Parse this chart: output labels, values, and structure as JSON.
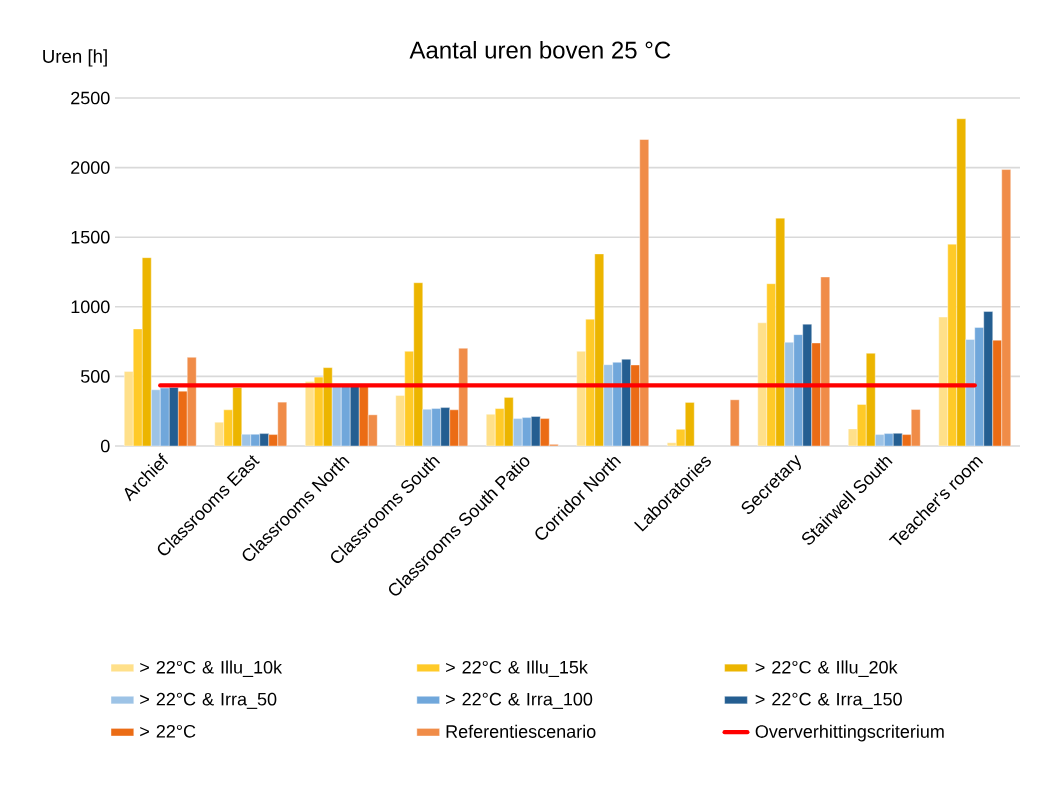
{
  "chart_data": {
    "type": "bar",
    "title": "Aantal uren boven 25 °C",
    "ylabel": "Uren [h]",
    "categories": [
      "Archief",
      "Classrooms East",
      "Classrooms North",
      "Classrooms South",
      "Classrooms South Patio",
      "Corridor North",
      "Laboratories",
      "Secretary",
      "Stairwell South",
      "Teacher's room"
    ],
    "series": [
      {
        "name": "> 22°C & Illu_10k",
        "color": "#ffe08a",
        "values": [
          536,
          171,
          464,
          363,
          228,
          680,
          24,
          885,
          123,
          926
        ]
      },
      {
        "name": "> 22°C & Illu_15k",
        "color": "#ffca28",
        "values": [
          841,
          260,
          495,
          680,
          269,
          911,
          120,
          1166,
          298,
          1450
        ]
      },
      {
        "name": "> 22°C & Illu_20k",
        "color": "#ecb500",
        "values": [
          1353,
          420,
          563,
          1173,
          349,
          1380,
          313,
          1637,
          666,
          2351
        ]
      },
      {
        "name": "> 22°C & Irra_50",
        "color": "#9dc3e6",
        "values": [
          404,
          84,
          430,
          264,
          197,
          584,
          null,
          745,
          82,
          765
        ]
      },
      {
        "name": "> 22°C & Irra_100",
        "color": "#70a7db",
        "values": [
          416,
          84,
          430,
          269,
          204,
          601,
          null,
          800,
          89,
          851
        ]
      },
      {
        "name": "> 22°C & Irra_150",
        "color": "#245e91",
        "values": [
          420,
          89,
          430,
          276,
          212,
          623,
          null,
          875,
          91,
          966
        ]
      },
      {
        "name": "> 22°C",
        "color": "#eb6c15",
        "values": [
          394,
          82,
          430,
          260,
          197,
          582,
          null,
          740,
          82,
          760
        ]
      },
      {
        "name": "Referentiescenario",
        "color": "#f08c48",
        "values": [
          637,
          315,
          224,
          702,
          12,
          2202,
          332,
          1214,
          262,
          1986
        ]
      },
      {
        "name": "Oververhittingscriterium",
        "type": "line",
        "color": "#ff0000",
        "values": [
          435,
          435,
          435,
          435,
          435,
          435,
          435,
          435,
          435,
          435
        ]
      }
    ],
    "ylim": [
      0,
      2500
    ],
    "yticks": [
      0,
      500,
      1000,
      1500,
      2000,
      2500
    ],
    "grid": "y",
    "legend": "bottom"
  }
}
